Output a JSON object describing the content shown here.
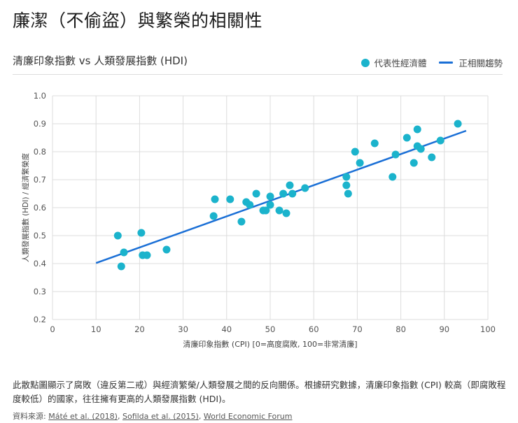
{
  "title": "廉潔（不偷盜）與繁榮的相關性",
  "description": "此散點圖顯示了腐敗（違反第二戒）與經濟繁榮/人類發展之間的反向關係。根據研究數據，清廉印象指數 (CPI) 較高（即腐敗程度較低）的國家，往往擁有更高的人類發展指數 (HDI)。",
  "source": {
    "label": "資料來源:",
    "links": [
      "Máté et al. (2018)",
      "Sofilda et al. (2015)",
      "World Economic Forum"
    ]
  },
  "colors": {
    "points": "#1bb3cc",
    "trend": "#1a6fd6",
    "grid": "#dcdcdc"
  },
  "chart_data": {
    "type": "scatter",
    "title": "清廉印象指數 vs 人類發展指數 (HDI)",
    "xlabel": "清廉印象指數 (CPI) [0=高度腐敗, 100=非常清廉]",
    "ylabel": "人類發展指數 (HDI) / 經濟繁榮度",
    "xlim": [
      0,
      100
    ],
    "ylim": [
      0.2,
      1.0
    ],
    "xticks": [
      "0",
      "10",
      "20",
      "30",
      "40",
      "50",
      "60",
      "70",
      "80",
      "90",
      "100"
    ],
    "yticks": [
      "0.2",
      "0.3",
      "0.4",
      "0.5",
      "0.6",
      "0.7",
      "0.8",
      "0.9",
      "1.0"
    ],
    "grid": true,
    "legend_position": "top-right",
    "series": [
      {
        "name": "代表性經濟體",
        "type": "scatter",
        "points": [
          [
            15.0,
            0.5
          ],
          [
            15.8,
            0.39
          ],
          [
            16.4,
            0.44
          ],
          [
            20.4,
            0.51
          ],
          [
            20.7,
            0.43
          ],
          [
            21.7,
            0.43
          ],
          [
            26.2,
            0.45
          ],
          [
            37.0,
            0.57
          ],
          [
            37.3,
            0.63
          ],
          [
            40.8,
            0.63
          ],
          [
            43.4,
            0.55
          ],
          [
            44.5,
            0.62
          ],
          [
            45.3,
            0.61
          ],
          [
            46.8,
            0.65
          ],
          [
            48.4,
            0.59
          ],
          [
            49.0,
            0.59
          ],
          [
            50.0,
            0.64
          ],
          [
            50.0,
            0.61
          ],
          [
            52.1,
            0.59
          ],
          [
            53.0,
            0.65
          ],
          [
            53.7,
            0.58
          ],
          [
            54.5,
            0.68
          ],
          [
            55.1,
            0.65
          ],
          [
            58.0,
            0.67
          ],
          [
            67.5,
            0.71
          ],
          [
            67.5,
            0.68
          ],
          [
            67.9,
            0.65
          ],
          [
            69.5,
            0.8
          ],
          [
            70.6,
            0.76
          ],
          [
            74.0,
            0.83
          ],
          [
            78.1,
            0.71
          ],
          [
            78.8,
            0.79
          ],
          [
            81.4,
            0.85
          ],
          [
            83.0,
            0.76
          ],
          [
            83.8,
            0.88
          ],
          [
            83.8,
            0.82
          ],
          [
            84.6,
            0.81
          ],
          [
            87.1,
            0.78
          ],
          [
            89.1,
            0.84
          ],
          [
            93.1,
            0.9
          ]
        ]
      },
      {
        "name": "正相關趨勢",
        "type": "line",
        "points": [
          [
            10,
            0.402
          ],
          [
            95,
            0.875
          ]
        ]
      }
    ]
  }
}
